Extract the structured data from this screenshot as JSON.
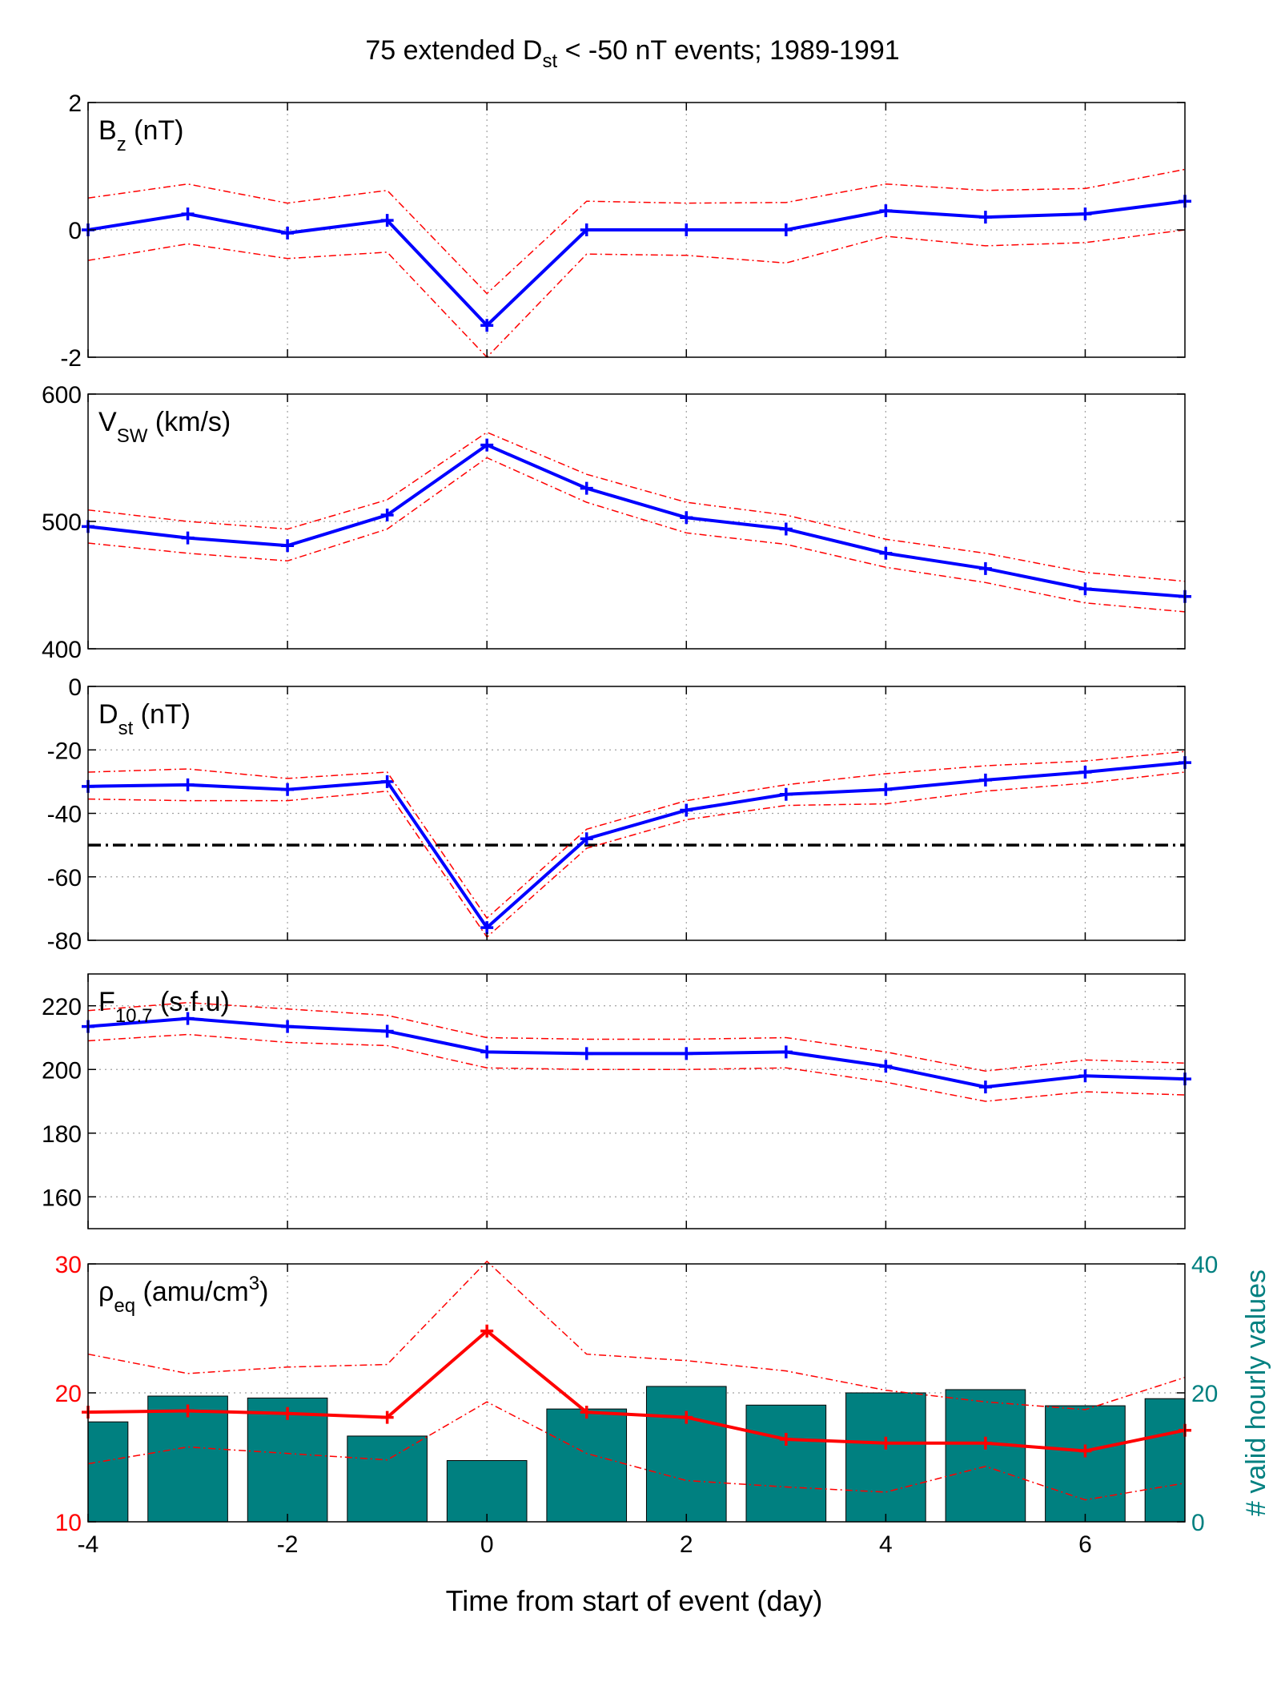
{
  "figure": {
    "title_main": "75 extended D",
    "title_sub": "st",
    "title_rest": " < -50 nT events; 1989-1991",
    "xlabel": "Time from start of event (day)",
    "colors": {
      "mean": "#0000ff",
      "band": "#ff0000",
      "rho": "#ff0000",
      "bars": "#008080",
      "threshold": "#000000"
    }
  },
  "chart_data": [
    {
      "id": "bz",
      "type": "line",
      "label_main": "B",
      "label_sub": "z",
      "label_rest": " (nT)",
      "x": [
        -4,
        -3,
        -2,
        -1,
        0,
        1,
        2,
        3,
        4,
        5,
        6,
        7
      ],
      "xlim": [
        -4,
        7
      ],
      "xticks": [
        -4,
        -2,
        0,
        2,
        4,
        6
      ],
      "xticklabels": [
        "",
        "",
        "",
        "",
        "",
        ""
      ],
      "ylim": [
        -2,
        2
      ],
      "yticks": [
        -2,
        0,
        2
      ],
      "yticklabels": [
        "-2",
        "0",
        "2"
      ],
      "grid": true,
      "series": [
        {
          "role": "mean",
          "values": [
            0.0,
            0.25,
            -0.05,
            0.15,
            -1.5,
            0.0,
            0.0,
            0.0,
            0.3,
            0.2,
            0.25,
            0.45
          ]
        },
        {
          "role": "upper",
          "values": [
            0.5,
            0.72,
            0.42,
            0.62,
            -1.0,
            0.45,
            0.42,
            0.43,
            0.72,
            0.62,
            0.65,
            0.95
          ]
        },
        {
          "role": "lower",
          "values": [
            -0.48,
            -0.22,
            -0.45,
            -0.35,
            -2.0,
            -0.38,
            -0.4,
            -0.52,
            -0.1,
            -0.25,
            -0.2,
            0.0
          ]
        }
      ]
    },
    {
      "id": "vsw",
      "type": "line",
      "label_main": "V",
      "label_sub": "SW",
      "label_rest": " (km/s)",
      "x": [
        -4,
        -3,
        -2,
        -1,
        0,
        1,
        2,
        3,
        4,
        5,
        6,
        7
      ],
      "xlim": [
        -4,
        7
      ],
      "xticks": [
        -4,
        -2,
        0,
        2,
        4,
        6
      ],
      "xticklabels": [
        "",
        "",
        "",
        "",
        "",
        ""
      ],
      "ylim": [
        400,
        600
      ],
      "yticks": [
        400,
        500,
        600
      ],
      "yticklabels": [
        "400",
        "500",
        "600"
      ],
      "grid": true,
      "series": [
        {
          "role": "mean",
          "values": [
            496,
            487,
            481,
            505,
            560,
            526,
            503,
            494,
            475,
            463,
            447,
            441
          ]
        },
        {
          "role": "upper",
          "values": [
            509,
            500,
            494,
            517,
            570,
            537,
            515,
            505,
            486,
            475,
            460,
            453
          ]
        },
        {
          "role": "lower",
          "values": [
            483,
            475,
            469,
            494,
            550,
            515,
            491,
            482,
            464,
            452,
            436,
            429
          ]
        }
      ]
    },
    {
      "id": "dst",
      "type": "line",
      "label_main": "D",
      "label_sub": "st",
      "label_rest": " (nT)",
      "x": [
        -4,
        -3,
        -2,
        -1,
        0,
        1,
        2,
        3,
        4,
        5,
        6,
        7
      ],
      "xlim": [
        -4,
        7
      ],
      "xticks": [
        -4,
        -2,
        0,
        2,
        4,
        6
      ],
      "xticklabels": [
        "",
        "",
        "",
        "",
        "",
        ""
      ],
      "ylim": [
        -80,
        0
      ],
      "yticks": [
        -80,
        -60,
        -40,
        -20,
        0
      ],
      "yticklabels": [
        "-80",
        "-60",
        "-40",
        "-20",
        "0"
      ],
      "grid": true,
      "threshold": -50,
      "series": [
        {
          "role": "mean",
          "values": [
            -31.5,
            -31,
            -32.5,
            -30,
            -76,
            -48,
            -39,
            -34,
            -32.5,
            -29.5,
            -27,
            -24
          ]
        },
        {
          "role": "upper",
          "values": [
            -27,
            -26,
            -29,
            -27,
            -73,
            -45,
            -36,
            -31,
            -27.5,
            -25,
            -23.5,
            -20.5
          ]
        },
        {
          "role": "lower",
          "values": [
            -35.5,
            -36,
            -36,
            -33,
            -79,
            -51,
            -42,
            -37.5,
            -37,
            -33,
            -30.5,
            -27
          ]
        }
      ]
    },
    {
      "id": "f107",
      "type": "line",
      "label_main": "F",
      "label_sub": "10.7",
      "label_rest": " (s.f.u)",
      "x": [
        -4,
        -3,
        -2,
        -1,
        0,
        1,
        2,
        3,
        4,
        5,
        6,
        7
      ],
      "xlim": [
        -4,
        7
      ],
      "xticks": [
        -4,
        -2,
        0,
        2,
        4,
        6
      ],
      "xticklabels": [
        "",
        "",
        "",
        "",
        "",
        ""
      ],
      "ylim": [
        150,
        230
      ],
      "yticks": [
        160,
        180,
        200,
        220
      ],
      "yticklabels": [
        "160",
        "180",
        "200",
        "220"
      ],
      "grid": true,
      "series": [
        {
          "role": "mean",
          "values": [
            213.5,
            216,
            213.5,
            212,
            205.5,
            205,
            205,
            205.5,
            201,
            194.5,
            198,
            197
          ]
        },
        {
          "role": "upper",
          "values": [
            218.5,
            221,
            219,
            217,
            210,
            209.5,
            209.5,
            210,
            205.5,
            199.5,
            203,
            202
          ]
        },
        {
          "role": "lower",
          "values": [
            209,
            211,
            208.5,
            207.5,
            200.5,
            200,
            200,
            200.5,
            196,
            190,
            193,
            192
          ]
        }
      ]
    },
    {
      "id": "rho",
      "type": "line+bar",
      "label_main": "ρ",
      "label_sub": "eq",
      "label_rest": " (amu/cm",
      "label_sup": "3",
      "label_close": ")",
      "x": [
        -4,
        -3,
        -2,
        -1,
        0,
        1,
        2,
        3,
        4,
        5,
        6,
        7
      ],
      "xlim": [
        -4,
        7
      ],
      "xticks": [
        -4,
        -2,
        0,
        2,
        4,
        6
      ],
      "xticklabels": [
        "-4",
        "-2",
        "0",
        "2",
        "4",
        "6"
      ],
      "ylim": [
        10,
        30
      ],
      "yticks": [
        10,
        20,
        30
      ],
      "yticklabels": [
        "10",
        "20",
        "30"
      ],
      "y2lim": [
        0,
        40
      ],
      "y2ticks": [
        0,
        20,
        40
      ],
      "y2ticklabels": [
        "0",
        "20",
        "40"
      ],
      "y2label": "# valid hourly values",
      "grid": true,
      "series": [
        {
          "role": "mean",
          "values": [
            18.5,
            18.6,
            18.4,
            18.1,
            24.8,
            18.5,
            18.1,
            16.4,
            16.1,
            16.1,
            15.5,
            17.1
          ]
        },
        {
          "role": "upper",
          "values": [
            23.0,
            21.5,
            22.0,
            22.2,
            30.2,
            23.0,
            22.5,
            21.7,
            20.2,
            19.3,
            18.7,
            21.2
          ]
        },
        {
          "role": "lower",
          "values": [
            14.5,
            15.8,
            15.3,
            14.8,
            19.3,
            15.3,
            13.2,
            12.7,
            12.3,
            14.3,
            11.7,
            13.0
          ]
        }
      ],
      "bars": [
        15.5,
        19.5,
        19.2,
        13.3,
        9.5,
        17.5,
        21.0,
        18.1,
        20.0,
        20.5,
        18.0,
        19.1
      ]
    }
  ]
}
